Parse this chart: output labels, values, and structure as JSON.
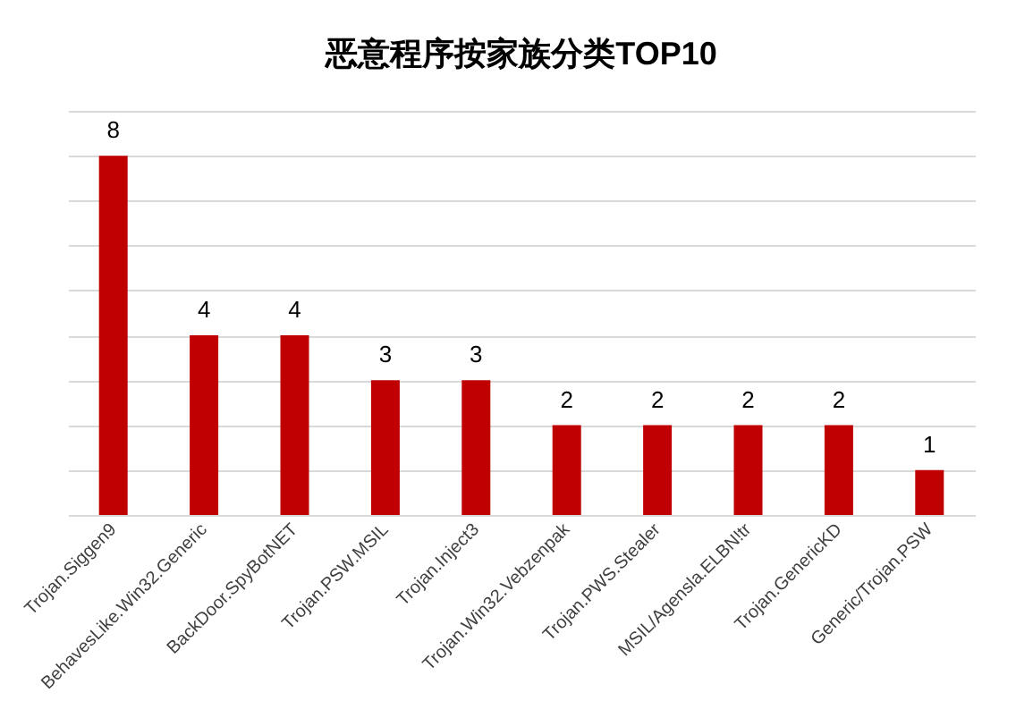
{
  "chart_data": {
    "type": "bar",
    "title": "恶意程序按家族分类TOP10",
    "categories": [
      "Trojan.Siggen9",
      "BehavesLike.Win32.Generic",
      "BackDoor.SpyBotNET",
      "Trojan.PSW.MSIL",
      "Trojan.Inject3",
      "Trojan.Win32.Vebzenpak",
      "Trojan.PWS.Stealer",
      "MSIL/Agensla.ELBN!tr",
      "Trojan.GenericKD",
      "Generic/Trojan.PSW"
    ],
    "values": [
      8,
      4,
      4,
      3,
      3,
      2,
      2,
      2,
      2,
      1
    ],
    "color": "#c00000",
    "ylim": [
      0,
      9
    ],
    "yticks": [
      {
        "value": 0,
        "label": null
      },
      {
        "value": 1,
        "label": null
      },
      {
        "value": 2,
        "label": null
      },
      {
        "value": 3,
        "label": null
      },
      {
        "value": 4,
        "label": null
      },
      {
        "value": 5,
        "label": null
      },
      {
        "value": 6,
        "label": null
      },
      {
        "value": 7,
        "label": null
      },
      {
        "value": 8,
        "label": null
      },
      {
        "value": 9,
        "label": null
      }
    ],
    "tick_labels": "x",
    "grid": "y",
    "data_labels": true
  }
}
